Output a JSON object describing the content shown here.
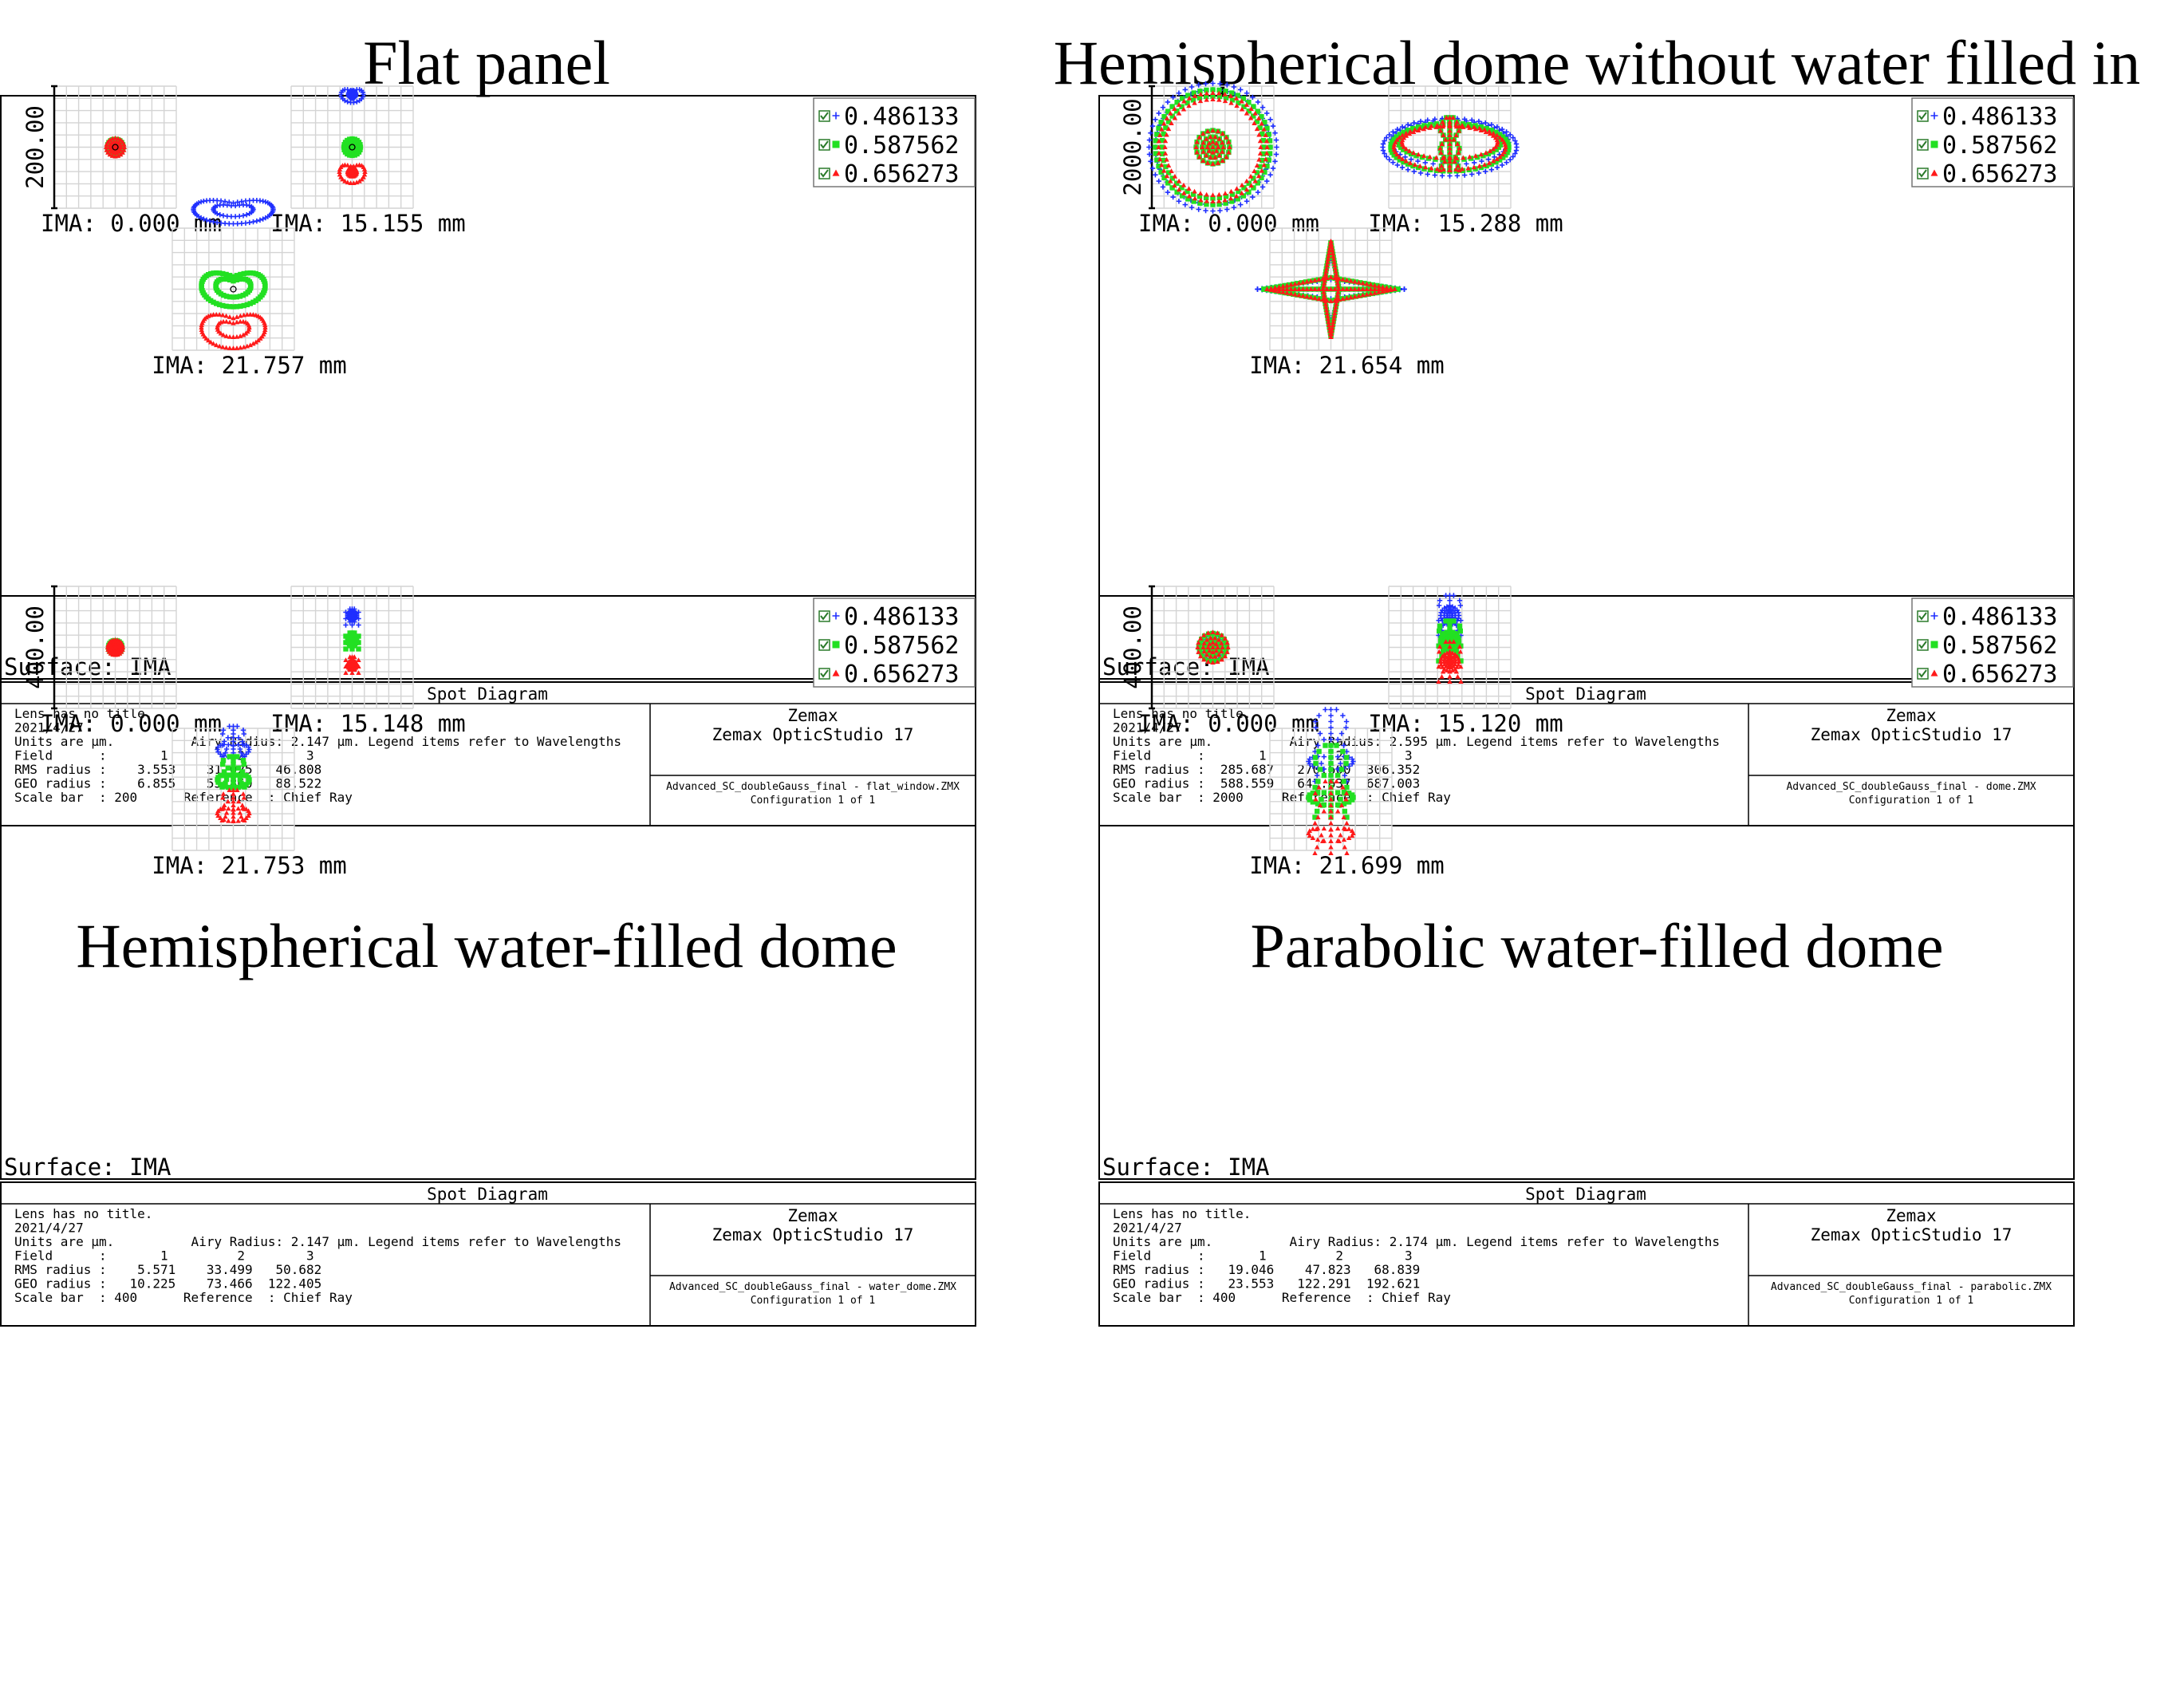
{
  "legend": [
    {
      "label": "0.486133",
      "color": "#1f2fff",
      "marker": "plus"
    },
    {
      "label": "0.587562",
      "color": "#22e022",
      "marker": "square"
    },
    {
      "label": "0.656273",
      "color": "#ff1a1a",
      "marker": "triangle"
    }
  ],
  "panels": [
    {
      "title": "Flat panel",
      "scale_label": "200.00",
      "ima_labels": [
        "IMA: 0.000 mm",
        "IMA: 15.155 mm",
        "IMA: 21.757 mm"
      ],
      "surface": "Surface: IMA",
      "footer": {
        "title": "Spot Diagram",
        "lines": [
          "Lens has no title.",
          "2021/4/27",
          "Units are µm.          Airy Radius: 2.147 µm. Legend items refer to Wavelengths",
          "Field      :       1         2        3",
          "RMS radius :    3.553    31.025   46.808",
          "GEO radius :    6.855    53.860   88.522",
          "Scale bar  : 200      Reference  : Chief Ray"
        ],
        "company": "Zemax",
        "product": "Zemax OpticStudio 17",
        "file": "Advanced_SC_doubleGauss_final - flat_window.ZMX",
        "config": "Configuration 1 of 1"
      }
    },
    {
      "title": "Hemispherical dome without water filled in",
      "scale_label": "2000.00",
      "ima_labels": [
        "IMA: 0.000 mm",
        "IMA: 15.288 mm",
        "IMA: 21.654 mm"
      ],
      "surface": "Surface: IMA",
      "footer": {
        "title": "Spot Diagram",
        "lines": [
          "Lens has no title.",
          "2021/4/27",
          "Units are µm.          Airy Radius: 2.595 µm. Legend items refer to Wavelengths",
          "Field      :       1         2        3",
          "RMS radius :  285.687   270.600  306.352",
          "GEO radius :  588.559   643.637  687.003",
          "Scale bar  : 2000     Reference  : Chief Ray"
        ],
        "company": "Zemax",
        "product": "Zemax OpticStudio 17",
        "file": "Advanced_SC_doubleGauss_final - dome.ZMX",
        "config": "Configuration 1 of 1"
      }
    },
    {
      "title": "Hemispherical water-filled dome",
      "scale_label": "400.00",
      "ima_labels": [
        "IMA: 0.000 mm",
        "IMA: 15.148 mm",
        "IMA: 21.753 mm"
      ],
      "surface": "Surface: IMA",
      "footer": {
        "title": "Spot Diagram",
        "lines": [
          "Lens has no title.",
          "2021/4/27",
          "Units are µm.          Airy Radius: 2.147 µm. Legend items refer to Wavelengths",
          "Field      :       1         2        3",
          "RMS radius :    5.571    33.499   50.682",
          "GEO radius :   10.225    73.466  122.405",
          "Scale bar  : 400      Reference  : Chief Ray"
        ],
        "company": "Zemax",
        "product": "Zemax OpticStudio 17",
        "file": "Advanced_SC_doubleGauss_final - water_dome.ZMX",
        "config": "Configuration 1 of 1"
      }
    },
    {
      "title": "Parabolic water-filled dome",
      "scale_label": "400.00",
      "ima_labels": [
        "IMA: 0.000 mm",
        "IMA: 15.120 mm",
        "IMA: 21.699 mm"
      ],
      "surface": "Surface: IMA",
      "footer": {
        "title": "Spot Diagram",
        "lines": [
          "Lens has no title.",
          "2021/4/27",
          "Units are µm.          Airy Radius: 2.174 µm. Legend items refer to Wavelengths",
          "Field      :       1         2        3",
          "RMS radius :   19.046    47.823   68.839",
          "GEO radius :   23.553   122.291  192.621",
          "Scale bar  : 400      Reference  : Chief Ray"
        ],
        "company": "Zemax",
        "product": "Zemax OpticStudio 17",
        "file": "Advanced_SC_doubleGauss_final - parabolic.ZMX",
        "config": "Configuration 1 of 1"
      }
    }
  ]
}
